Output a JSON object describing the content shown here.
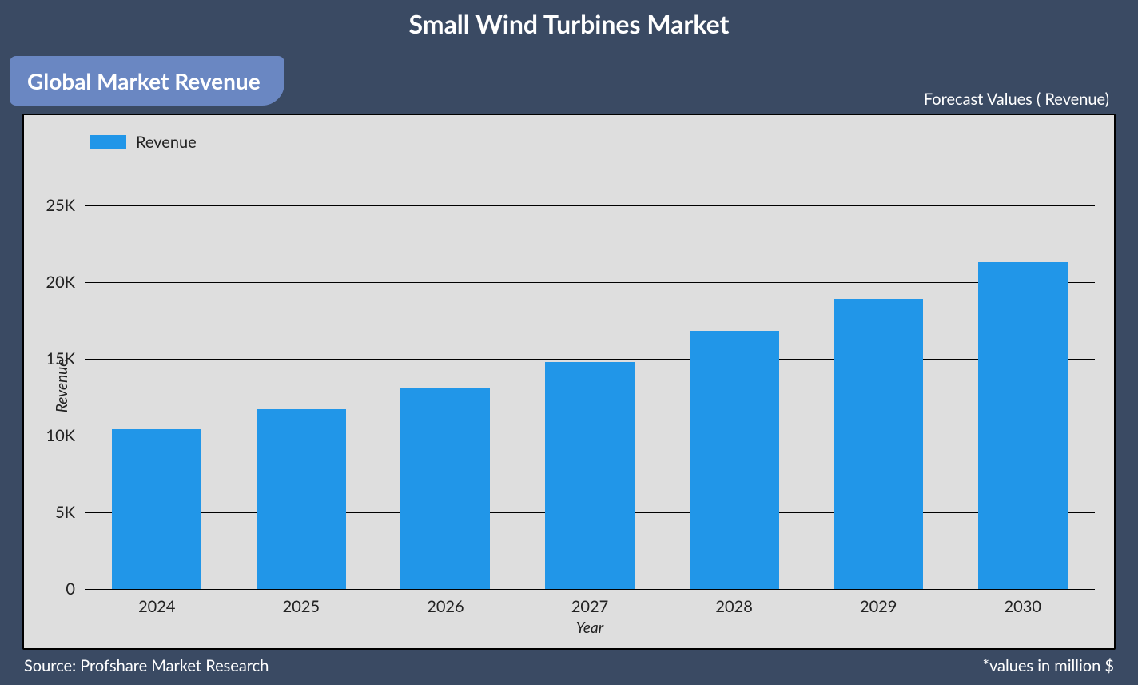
{
  "page": {
    "background_color": "#3a4a63",
    "title": "Small Wind Turbines Market",
    "title_color": "#ffffff",
    "title_fontsize": 32,
    "subtitle_badge": {
      "text": "Global Market Revenue",
      "bg_color": "#6a87c2",
      "text_color": "#ffffff",
      "fontsize": 28
    },
    "forecast_label": "Forecast Values ( Revenue)",
    "forecast_fontsize": 20,
    "source_text": "Source: Profshare Market Research",
    "values_note": "*values in million $",
    "footer_fontsize": 20
  },
  "chart": {
    "type": "bar",
    "background_color": "#dedede",
    "grid_color": "#000000",
    "bar_color": "#2196e8",
    "bar_width_pct": 62,
    "legend_label": "Revenue",
    "legend_fontsize": 20,
    "ylabel": "Revenue",
    "xlabel": "Year",
    "axis_label_fontsize": 19,
    "tick_fontsize": 20,
    "ylim": [
      0,
      26500
    ],
    "yticks": [
      {
        "value": 0,
        "label": "0"
      },
      {
        "value": 5000,
        "label": "5K"
      },
      {
        "value": 10000,
        "label": "10K"
      },
      {
        "value": 15000,
        "label": "15K"
      },
      {
        "value": 20000,
        "label": "20K"
      },
      {
        "value": 25000,
        "label": "25K"
      }
    ],
    "categories": [
      "2024",
      "2025",
      "2026",
      "2027",
      "2028",
      "2029",
      "2030"
    ],
    "values": [
      10400,
      11700,
      13100,
      14800,
      16800,
      18900,
      21300
    ]
  }
}
